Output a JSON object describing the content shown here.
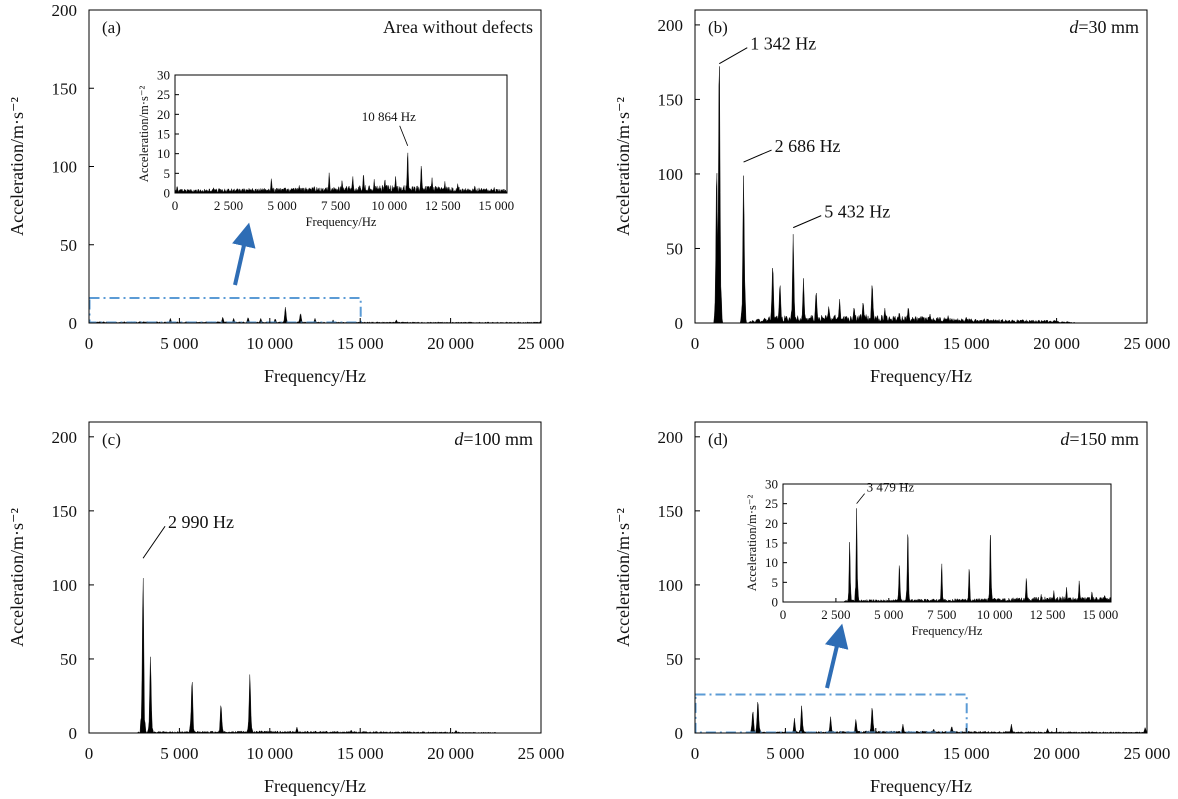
{
  "chart_data": [
    {
      "type": "area",
      "panel_label": "(a)",
      "title": "Area without defects",
      "title_italic": "",
      "xlabel": "Frequency/Hz",
      "ylabel": "Acceleration/m·s⁻²",
      "xlim": [
        0,
        25000
      ],
      "ylim": [
        0,
        200
      ],
      "xticks": [
        0,
        5000,
        10000,
        15000,
        20000,
        25000
      ],
      "xtick_labels": [
        "0",
        "5 000",
        "10 000",
        "15 000",
        "20 000",
        "25 000"
      ],
      "yticks": [
        0,
        50,
        100,
        150,
        200
      ],
      "ytick_labels": [
        "0",
        "50",
        "100",
        "150",
        "200"
      ],
      "noise": {
        "start": 0,
        "end": 25000,
        "levels": [
          [
            0,
            0.8
          ],
          [
            15000,
            0.6
          ],
          [
            20000,
            0.5
          ],
          [
            25000,
            0.5
          ]
        ]
      },
      "peaks": [
        [
          4500,
          3
        ],
        [
          7400,
          4
        ],
        [
          8000,
          3
        ],
        [
          8800,
          4
        ],
        [
          9500,
          3
        ],
        [
          10300,
          3
        ],
        [
          10864,
          11
        ],
        [
          11700,
          7
        ],
        [
          12500,
          3
        ],
        [
          13500,
          2
        ],
        [
          17000,
          2
        ],
        [
          25000,
          2
        ]
      ],
      "annotations": [],
      "zoom_box": {
        "x0": 0,
        "x1": 15000,
        "y0": 0,
        "y1": 16
      },
      "inset": {
        "xlabel": "Frequency/Hz",
        "ylabel": "Acceleration/m·s⁻²",
        "xlim": [
          0,
          15500
        ],
        "ylim": [
          0,
          30
        ],
        "xticks": [
          0,
          2500,
          5000,
          7500,
          10000,
          12500,
          15000
        ],
        "xtick_labels": [
          "0",
          "2 500",
          "5 000",
          "7 500",
          "10 000",
          "12 500",
          "15 000"
        ],
        "yticks": [
          0,
          5,
          10,
          15,
          20,
          25,
          30
        ],
        "ytick_labels": [
          "0",
          "5",
          "10",
          "15",
          "20",
          "25",
          "30"
        ],
        "noise": {
          "start": 0,
          "end": 15500,
          "levels": [
            [
              0,
              0.8
            ],
            [
              6500,
              1.2
            ],
            [
              9500,
              1.8
            ],
            [
              14000,
              1.2
            ],
            [
              15500,
              0.8
            ]
          ]
        },
        "peaks": [
          [
            100,
            2
          ],
          [
            1800,
            1.5
          ],
          [
            4500,
            4
          ],
          [
            5800,
            2
          ],
          [
            6500,
            2
          ],
          [
            7200,
            5.5
          ],
          [
            7800,
            3.5
          ],
          [
            8300,
            4.5
          ],
          [
            8800,
            5.5
          ],
          [
            9300,
            3.5
          ],
          [
            9800,
            4
          ],
          [
            10300,
            4.5
          ],
          [
            10864,
            12
          ],
          [
            11500,
            8
          ],
          [
            12000,
            4
          ],
          [
            12600,
            3
          ],
          [
            13200,
            2.5
          ],
          [
            14000,
            2
          ],
          [
            14900,
            1.5
          ]
        ],
        "annotations": [
          {
            "label": "10 864 Hz",
            "x": 10864,
            "y": 12
          }
        ]
      }
    },
    {
      "type": "area",
      "panel_label": "(b)",
      "title": "=30 mm",
      "title_italic": "d",
      "xlabel": "Frequency/Hz",
      "ylabel": "Acceleration/m·s⁻²",
      "xlim": [
        0,
        25000
      ],
      "ylim": [
        0,
        210
      ],
      "xticks": [
        0,
        5000,
        10000,
        15000,
        20000,
        25000
      ],
      "xtick_labels": [
        "0",
        "5 000",
        "10 000",
        "15 000",
        "20 000",
        "25 000"
      ],
      "yticks": [
        0,
        50,
        100,
        150,
        200
      ],
      "ytick_labels": [
        "0",
        "50",
        "100",
        "150",
        "200"
      ],
      "noise": {
        "start": 3000,
        "end": 21000,
        "levels": [
          [
            3000,
            1
          ],
          [
            4000,
            4
          ],
          [
            10000,
            5
          ],
          [
            15000,
            2.5
          ],
          [
            20000,
            1.5
          ],
          [
            21000,
            0.5
          ]
        ]
      },
      "peaks": [
        [
          1200,
          120
        ],
        [
          1342,
          208
        ],
        [
          2686,
          108
        ],
        [
          4300,
          44
        ],
        [
          4700,
          30
        ],
        [
          5432,
          62
        ],
        [
          6000,
          30
        ],
        [
          6700,
          24
        ],
        [
          7400,
          12
        ],
        [
          8000,
          16
        ],
        [
          8800,
          12
        ],
        [
          9300,
          16
        ],
        [
          9800,
          30
        ],
        [
          10500,
          10
        ],
        [
          11300,
          8
        ],
        [
          11800,
          12
        ],
        [
          13000,
          6
        ],
        [
          14000,
          5
        ],
        [
          15000,
          4
        ],
        [
          16000,
          3
        ],
        [
          17000,
          2.5
        ],
        [
          18000,
          2
        ]
      ],
      "annotations": [
        {
          "label": "1 342 Hz",
          "x": 1342,
          "y": 174
        },
        {
          "label": "2 686 Hz",
          "x": 2686,
          "y": 108
        },
        {
          "label": "5 432 Hz",
          "x": 5432,
          "y": 64
        }
      ]
    },
    {
      "type": "area",
      "panel_label": "(c)",
      "title": "=100 mm",
      "title_italic": "d",
      "xlabel": "Frequency/Hz",
      "ylabel": "Acceleration/m·s⁻²",
      "xlim": [
        0,
        25000
      ],
      "ylim": [
        0,
        210
      ],
      "xticks": [
        0,
        5000,
        10000,
        15000,
        20000,
        25000
      ],
      "xtick_labels": [
        "0",
        "5 000",
        "10 000",
        "15 000",
        "20 000",
        "25 000"
      ],
      "yticks": [
        0,
        50,
        100,
        150,
        200
      ],
      "ytick_labels": [
        "0",
        "50",
        "100",
        "150",
        "200"
      ],
      "noise": {
        "start": 2700,
        "end": 22500,
        "levels": [
          [
            2700,
            0.8
          ],
          [
            10000,
            1.2
          ],
          [
            18000,
            0.8
          ],
          [
            22500,
            0.4
          ]
        ]
      },
      "peaks": [
        [
          2990,
          118
        ],
        [
          3400,
          56
        ],
        [
          5700,
          41
        ],
        [
          7300,
          22
        ],
        [
          8900,
          43
        ],
        [
          11500,
          4
        ],
        [
          14500,
          2
        ],
        [
          20300,
          2
        ]
      ],
      "annotations": [
        {
          "label": "2 990 Hz",
          "x": 2990,
          "y": 118
        }
      ]
    },
    {
      "type": "area",
      "panel_label": "(d)",
      "title": "=150 mm",
      "title_italic": "d",
      "xlabel": "Frequency/Hz",
      "ylabel": "Acceleration/m·s⁻²",
      "xlim": [
        0,
        25000
      ],
      "ylim": [
        0,
        210
      ],
      "xticks": [
        0,
        5000,
        10000,
        15000,
        20000,
        25000
      ],
      "xtick_labels": [
        "0",
        "5 000",
        "10 000",
        "15 000",
        "20 000",
        "25 000"
      ],
      "yticks": [
        0,
        50,
        100,
        150,
        200
      ],
      "ytick_labels": [
        "0",
        "50",
        "100",
        "150",
        "200"
      ],
      "noise": {
        "start": 2800,
        "end": 25000,
        "levels": [
          [
            2800,
            0.6
          ],
          [
            10000,
            1.2
          ],
          [
            20000,
            0.8
          ],
          [
            25000,
            0.6
          ]
        ]
      },
      "peaks": [
        [
          3200,
          17
        ],
        [
          3479,
          25
        ],
        [
          5500,
          10
        ],
        [
          5900,
          20
        ],
        [
          7500,
          11
        ],
        [
          8900,
          10
        ],
        [
          9800,
          20
        ],
        [
          11500,
          6
        ],
        [
          13200,
          3
        ],
        [
          14200,
          5
        ],
        [
          17500,
          6
        ],
        [
          19500,
          3
        ],
        [
          24900,
          4
        ]
      ],
      "annotations": [],
      "zoom_box": {
        "x0": 0,
        "x1": 15000,
        "y0": 0,
        "y1": 26
      },
      "inset": {
        "xlabel": "Frequency/Hz",
        "ylabel": "Acceleration/m·s⁻²",
        "xlim": [
          0,
          15500
        ],
        "ylim": [
          0,
          30
        ],
        "xticks": [
          0,
          2500,
          5000,
          7500,
          10000,
          12500,
          15000
        ],
        "xtick_labels": [
          "0",
          "2 500",
          "5 000",
          "7 500",
          "10 000",
          "12 500",
          "15 000"
        ],
        "yticks": [
          0,
          5,
          10,
          15,
          20,
          25,
          30
        ],
        "ytick_labels": [
          "0",
          "5",
          "10",
          "15",
          "20",
          "25",
          "30"
        ],
        "noise": {
          "start": 2900,
          "end": 15500,
          "levels": [
            [
              2900,
              0.5
            ],
            [
              10000,
              0.8
            ],
            [
              13000,
              1.2
            ],
            [
              15500,
              1
            ]
          ]
        },
        "peaks": [
          [
            3150,
            17
          ],
          [
            3479,
            25
          ],
          [
            5500,
            11
          ],
          [
            5900,
            21
          ],
          [
            7500,
            11
          ],
          [
            8800,
            10
          ],
          [
            9800,
            20.5
          ],
          [
            11500,
            7
          ],
          [
            12200,
            2
          ],
          [
            12800,
            3
          ],
          [
            13400,
            4
          ],
          [
            14000,
            6
          ],
          [
            14600,
            3
          ],
          [
            15200,
            2
          ]
        ],
        "annotations": [
          {
            "label": "3 479 Hz",
            "x": 3479,
            "y": 25
          }
        ]
      }
    }
  ]
}
